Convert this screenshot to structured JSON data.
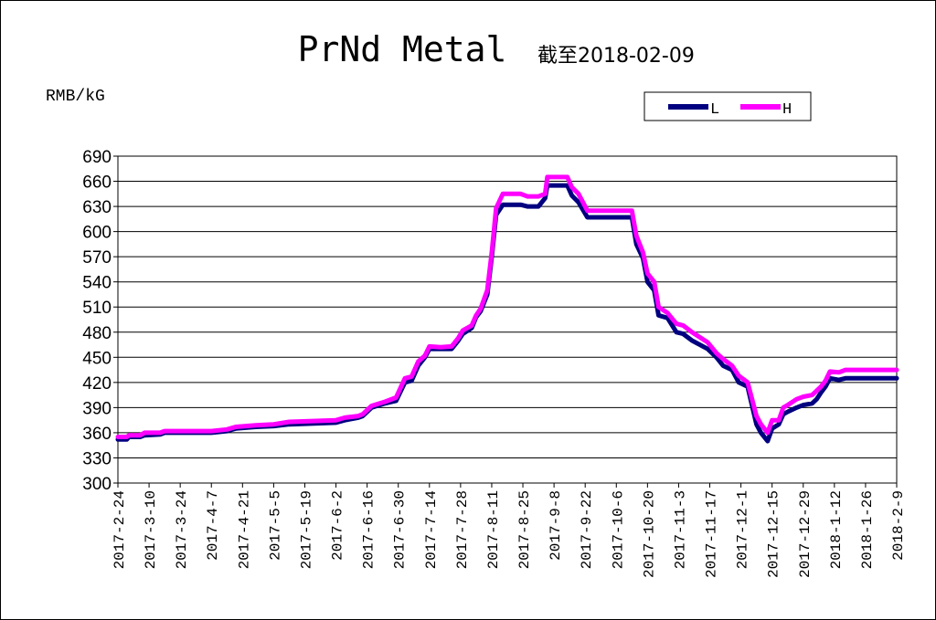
{
  "chart_data": {
    "type": "line",
    "title": "PrNd Metal",
    "subtitle": "截至2018-02-09",
    "ylabel": "RMB/kG",
    "ylim": [
      300,
      690
    ],
    "yticks": [
      300,
      330,
      360,
      390,
      420,
      450,
      480,
      510,
      540,
      570,
      600,
      630,
      660,
      690
    ],
    "grid": true,
    "legend_position": "top-right",
    "xlim": [
      "2017-02-24",
      "2018-02-09"
    ],
    "xtick_labels": [
      "2017-2-24",
      "2017-3-10",
      "2017-3-24",
      "2017-4-7",
      "2017-4-21",
      "2017-5-5",
      "2017-5-19",
      "2017-6-2",
      "2017-6-16",
      "2017-6-30",
      "2017-7-14",
      "2017-7-28",
      "2017-8-11",
      "2017-8-25",
      "2017-9-8",
      "2017-9-22",
      "2017-10-6",
      "2017-10-20",
      "2017-11-3",
      "2017-11-17",
      "2017-12-1",
      "2017-12-15",
      "2017-12-29",
      "2018-1-12",
      "2018-1-26",
      "2018-2-9"
    ],
    "series": [
      {
        "name": "L",
        "color": "#000080",
        "points": [
          [
            "2017-02-24",
            352
          ],
          [
            "2017-02-28",
            352
          ],
          [
            "2017-03-01",
            355
          ],
          [
            "2017-03-06",
            355
          ],
          [
            "2017-03-08",
            357
          ],
          [
            "2017-03-15",
            358
          ],
          [
            "2017-03-17",
            360
          ],
          [
            "2017-04-07",
            360
          ],
          [
            "2017-04-14",
            362
          ],
          [
            "2017-04-18",
            365
          ],
          [
            "2017-04-27",
            367
          ],
          [
            "2017-05-05",
            368
          ],
          [
            "2017-05-12",
            370
          ],
          [
            "2017-06-02",
            372
          ],
          [
            "2017-06-06",
            375
          ],
          [
            "2017-06-12",
            378
          ],
          [
            "2017-06-14",
            380
          ],
          [
            "2017-06-18",
            390
          ],
          [
            "2017-06-24",
            395
          ],
          [
            "2017-06-29",
            398
          ],
          [
            "2017-07-03",
            420
          ],
          [
            "2017-07-06",
            422
          ],
          [
            "2017-07-09",
            440
          ],
          [
            "2017-07-12",
            450
          ],
          [
            "2017-07-14",
            460
          ],
          [
            "2017-07-19",
            460
          ],
          [
            "2017-07-24",
            460
          ],
          [
            "2017-07-27",
            470
          ],
          [
            "2017-07-29",
            478
          ],
          [
            "2017-08-02",
            485
          ],
          [
            "2017-08-04",
            498
          ],
          [
            "2017-08-06",
            505
          ],
          [
            "2017-08-09",
            525
          ],
          [
            "2017-08-11",
            570
          ],
          [
            "2017-08-13",
            620
          ],
          [
            "2017-08-16",
            632
          ],
          [
            "2017-08-24",
            632
          ],
          [
            "2017-08-27",
            630
          ],
          [
            "2017-09-01",
            630
          ],
          [
            "2017-09-04",
            640
          ],
          [
            "2017-09-05",
            655
          ],
          [
            "2017-09-14",
            655
          ],
          [
            "2017-09-16",
            643
          ],
          [
            "2017-09-19",
            635
          ],
          [
            "2017-09-23",
            617
          ],
          [
            "2017-10-13",
            617
          ],
          [
            "2017-10-15",
            585
          ],
          [
            "2017-10-18",
            568
          ],
          [
            "2017-10-20",
            540
          ],
          [
            "2017-10-23",
            530
          ],
          [
            "2017-10-25",
            500
          ],
          [
            "2017-10-29",
            497
          ],
          [
            "2017-11-02",
            480
          ],
          [
            "2017-11-05",
            478
          ],
          [
            "2017-11-09",
            470
          ],
          [
            "2017-11-16",
            460
          ],
          [
            "2017-11-20",
            450
          ],
          [
            "2017-11-23",
            440
          ],
          [
            "2017-11-27",
            435
          ],
          [
            "2017-11-30",
            420
          ],
          [
            "2017-12-04",
            415
          ],
          [
            "2017-12-08",
            370
          ],
          [
            "2017-12-10",
            360
          ],
          [
            "2017-12-13",
            350
          ],
          [
            "2017-12-15",
            365
          ],
          [
            "2017-12-18",
            370
          ],
          [
            "2017-12-20",
            382
          ],
          [
            "2017-12-22",
            385
          ],
          [
            "2017-12-26",
            390
          ],
          [
            "2017-12-29",
            393
          ],
          [
            "2018-01-02",
            395
          ],
          [
            "2018-01-04",
            400
          ],
          [
            "2018-01-06",
            408
          ],
          [
            "2018-01-08",
            415
          ],
          [
            "2018-01-10",
            425
          ],
          [
            "2018-01-14",
            423
          ],
          [
            "2018-01-17",
            425
          ],
          [
            "2018-02-09",
            425
          ]
        ]
      },
      {
        "name": "H",
        "color": "#FF00FF",
        "points": [
          [
            "2017-02-24",
            355
          ],
          [
            "2017-02-28",
            355
          ],
          [
            "2017-03-01",
            357
          ],
          [
            "2017-03-06",
            357
          ],
          [
            "2017-03-08",
            360
          ],
          [
            "2017-03-15",
            360
          ],
          [
            "2017-03-17",
            362
          ],
          [
            "2017-04-07",
            362
          ],
          [
            "2017-04-14",
            364
          ],
          [
            "2017-04-18",
            367
          ],
          [
            "2017-04-27",
            369
          ],
          [
            "2017-05-05",
            370
          ],
          [
            "2017-05-12",
            373
          ],
          [
            "2017-06-02",
            375
          ],
          [
            "2017-06-06",
            378
          ],
          [
            "2017-06-12",
            380
          ],
          [
            "2017-06-14",
            382
          ],
          [
            "2017-06-18",
            392
          ],
          [
            "2017-06-24",
            397
          ],
          [
            "2017-06-29",
            402
          ],
          [
            "2017-07-03",
            425
          ],
          [
            "2017-07-06",
            427
          ],
          [
            "2017-07-09",
            445
          ],
          [
            "2017-07-12",
            452
          ],
          [
            "2017-07-14",
            463
          ],
          [
            "2017-07-19",
            462
          ],
          [
            "2017-07-24",
            463
          ],
          [
            "2017-07-27",
            473
          ],
          [
            "2017-07-29",
            482
          ],
          [
            "2017-08-02",
            488
          ],
          [
            "2017-08-04",
            500
          ],
          [
            "2017-08-06",
            508
          ],
          [
            "2017-08-09",
            530
          ],
          [
            "2017-08-11",
            575
          ],
          [
            "2017-08-13",
            628
          ],
          [
            "2017-08-16",
            645
          ],
          [
            "2017-08-24",
            645
          ],
          [
            "2017-08-27",
            642
          ],
          [
            "2017-09-01",
            642
          ],
          [
            "2017-09-04",
            645
          ],
          [
            "2017-09-05",
            665
          ],
          [
            "2017-09-14",
            665
          ],
          [
            "2017-09-16",
            653
          ],
          [
            "2017-09-19",
            645
          ],
          [
            "2017-09-23",
            625
          ],
          [
            "2017-10-13",
            625
          ],
          [
            "2017-10-15",
            595
          ],
          [
            "2017-10-18",
            575
          ],
          [
            "2017-10-20",
            550
          ],
          [
            "2017-10-23",
            540
          ],
          [
            "2017-10-25",
            510
          ],
          [
            "2017-10-29",
            503
          ],
          [
            "2017-11-02",
            490
          ],
          [
            "2017-11-05",
            488
          ],
          [
            "2017-11-09",
            480
          ],
          [
            "2017-11-16",
            468
          ],
          [
            "2017-11-20",
            455
          ],
          [
            "2017-11-23",
            448
          ],
          [
            "2017-11-27",
            440
          ],
          [
            "2017-11-30",
            428
          ],
          [
            "2017-12-04",
            420
          ],
          [
            "2017-12-08",
            380
          ],
          [
            "2017-12-10",
            370
          ],
          [
            "2017-12-13",
            360
          ],
          [
            "2017-12-15",
            375
          ],
          [
            "2017-12-18",
            375
          ],
          [
            "2017-12-20",
            390
          ],
          [
            "2017-12-22",
            393
          ],
          [
            "2017-12-26",
            400
          ],
          [
            "2017-12-29",
            403
          ],
          [
            "2018-01-02",
            405
          ],
          [
            "2018-01-04",
            410
          ],
          [
            "2018-01-06",
            415
          ],
          [
            "2018-01-08",
            422
          ],
          [
            "2018-01-10",
            433
          ],
          [
            "2018-01-14",
            432
          ],
          [
            "2018-01-17",
            435
          ],
          [
            "2018-02-09",
            435
          ]
        ]
      }
    ]
  }
}
